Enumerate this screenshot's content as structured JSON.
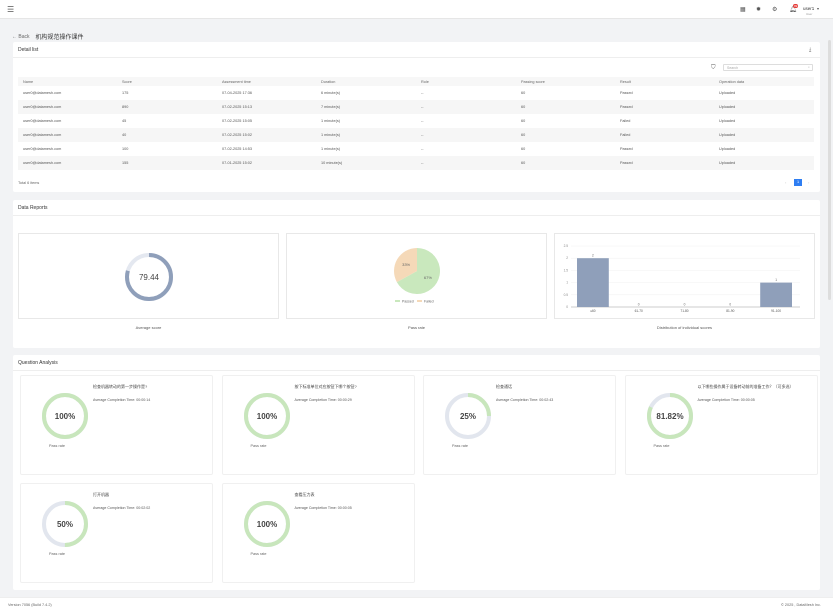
{
  "header": {
    "user_name": "user1",
    "user_sub": "User",
    "notification_count": "99",
    "icons": [
      "menu-icon",
      "grid-icon",
      "sun-icon",
      "settings-icon",
      "bell-icon",
      "chevron-down-icon"
    ]
  },
  "breadcrumb": {
    "back": "Back",
    "title": "机构规范操作课件"
  },
  "detail": {
    "title": "Detail list",
    "search_placeholder": "Search",
    "columns": [
      "Name",
      "Score",
      "Assessment time",
      "Duration",
      "Role",
      "Passing score",
      "Result",
      "Operation data"
    ],
    "rows": [
      [
        "user0@datamesh.com",
        "175",
        "07-04-2025 17:36",
        "6 minute(s)",
        "--",
        "60",
        "Passed",
        "Uploaded"
      ],
      [
        "user0@datamesh.com",
        "890",
        "07-02-2025 15:13",
        "7 minute(s)",
        "--",
        "60",
        "Passed",
        "Uploaded"
      ],
      [
        "user0@datamesh.com",
        "45",
        "07-02-2025 15:05",
        "1 minute(s)",
        "--",
        "60",
        "Failed",
        "Uploaded"
      ],
      [
        "user0@datamesh.com",
        "40",
        "07-02-2025 15:02",
        "1 minute(s)",
        "--",
        "60",
        "Failed",
        "Uploaded"
      ],
      [
        "user0@datamesh.com",
        "100",
        "07-02-2025 14:53",
        "1 minute(s)",
        "--",
        "60",
        "Passed",
        "Uploaded"
      ],
      [
        "user0@datamesh.com",
        "155",
        "07-01-2025 15:02",
        "10 minute(s)",
        "--",
        "60",
        "Passed",
        "Uploaded"
      ]
    ],
    "total": "Total 6 items",
    "current_page": "1"
  },
  "reports": {
    "title": "Data Reports",
    "avg_score": "79.44",
    "avg_caption": "Average score",
    "pass_caption": "Pass rate",
    "dist_caption": "Distribution of individual scores"
  },
  "chart_data": [
    {
      "type": "gauge",
      "value": 79.44,
      "max": 100,
      "caption": "Average score"
    },
    {
      "type": "pie",
      "categories": [
        "Passed",
        "Failed"
      ],
      "values": [
        67,
        33
      ],
      "labels": [
        "67%",
        "33%"
      ],
      "colors": [
        "#c9e8bd",
        "#f5d9b8"
      ],
      "legend": "bottom",
      "caption": "Pass rate"
    },
    {
      "type": "bar",
      "categories": [
        "≤60",
        "61-70",
        "71-80",
        "81-90",
        "91-100"
      ],
      "values": [
        2,
        0,
        0,
        0,
        1
      ],
      "ylim": [
        0,
        2.5
      ],
      "yticks": [
        "0",
        "0.5",
        "1",
        "1.5",
        "2",
        "2.5"
      ],
      "color": "#8f9fba",
      "caption": "Distribution of individual scores"
    }
  ],
  "questions": {
    "title": "Question Analysis",
    "pass_label": "Pass rate",
    "items": [
      {
        "title": "检查机器转动的第一步操作是?",
        "avg": "Average Completion Time: 00:00:14",
        "rate": "100%",
        "value": 100
      },
      {
        "title": "按下标准单位对应按钮下哪个按钮?",
        "avg": "Average Completion Time: 00:00:29",
        "rate": "100%",
        "value": 100
      },
      {
        "title": "检查通话",
        "avg": "Average Completion Time: 00:02:43",
        "rate": "25%",
        "value": 25
      },
      {
        "title": "以下哪些操作属于设备转动前的准备工作？（可多选）",
        "avg": "Average Completion Time: 00:00:05",
        "rate": "81.82%",
        "value": 81.82
      },
      {
        "title": "打开机器",
        "avg": "Average Completion Time: 00:02:02",
        "rate": "50%",
        "value": 50
      },
      {
        "title": "查看压力表",
        "avg": "Average Completion Time: 00:00:05",
        "rate": "100%",
        "value": 100
      }
    ]
  },
  "footer": {
    "version": "Version 7056 (Build 7.4.2)",
    "copyright": "© 2025 , DataMesh Inc."
  }
}
